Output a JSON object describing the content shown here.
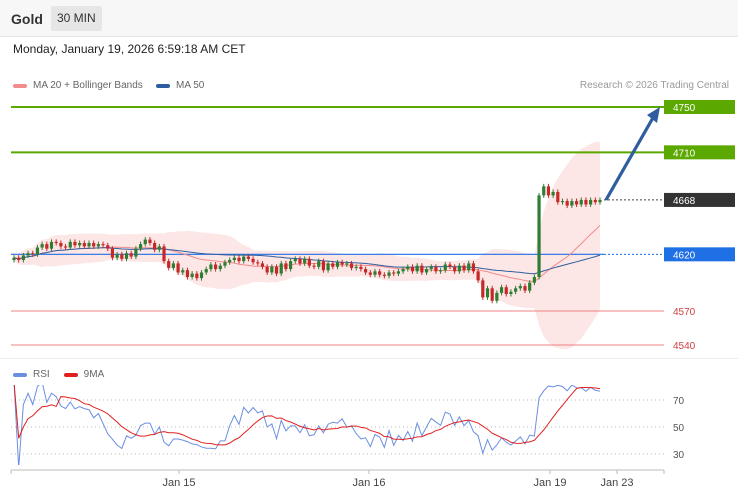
{
  "header": {
    "title": "Gold",
    "timeframe": "30 MIN"
  },
  "date_label": "Monday, January 19, 2026 6:59:18 AM CET",
  "legend": {
    "ma20": {
      "label": "MA 20 + Bollinger Bands",
      "color": "#f28b8b"
    },
    "ma50": {
      "label": "MA 50",
      "color": "#2f5e9e"
    }
  },
  "copyright": "Research © 2026 Trading Central",
  "levels": [
    {
      "value": 4750,
      "label": "4750",
      "color": "#5aa800",
      "kind": "resistance"
    },
    {
      "value": 4710,
      "label": "4710",
      "color": "#5aa800",
      "kind": "resistance"
    },
    {
      "value": 4668,
      "label": "4668",
      "color": "#333333",
      "kind": "last"
    },
    {
      "value": 4620,
      "label": "4620",
      "color": "#1f6fe5",
      "kind": "pivot"
    },
    {
      "value": 4570,
      "label": "4570",
      "color": "#f08080",
      "kind": "support"
    },
    {
      "value": 4540,
      "label": "4540",
      "color": "#f08080",
      "kind": "support"
    }
  ],
  "rsi_legend": {
    "rsi": {
      "label": "RSI",
      "color": "#6b8fe0"
    },
    "ma9": {
      "label": "9MA",
      "color": "#e02020"
    }
  },
  "rsi_axis": [
    "70",
    "50",
    "30"
  ],
  "x_labels": [
    "Jan 15",
    "Jan 16",
    "Jan 19",
    "Jan 23"
  ],
  "chart_data": {
    "type": "candlestick",
    "instrument": "Gold",
    "timeframe": "30 MIN",
    "up_color": "#2e7d32",
    "down_color": "#c62828",
    "closes": [
      4617,
      4615,
      4619,
      4621,
      4620,
      4626,
      4629,
      4625,
      4631,
      4630,
      4627,
      4626,
      4631,
      4628,
      4630,
      4627,
      4630,
      4627,
      4629,
      4628,
      4625,
      4617,
      4620,
      4616,
      4621,
      4618,
      4625,
      4629,
      4633,
      4630,
      4624,
      4627,
      4614,
      4608,
      4612,
      4604,
      4606,
      4600,
      4603,
      4599,
      4604,
      4607,
      4611,
      4607,
      4610,
      4613,
      4615,
      4617,
      4614,
      4618,
      4616,
      4613,
      4612,
      4609,
      4604,
      4609,
      4603,
      4612,
      4607,
      4614,
      4616,
      4612,
      4616,
      4610,
      4609,
      4614,
      4606,
      4612,
      4609,
      4613,
      4611,
      4612,
      4608,
      4609,
      4607,
      4604,
      4602,
      4605,
      4602,
      4601,
      4604,
      4603,
      4605,
      4607,
      4609,
      4605,
      4610,
      4604,
      4607,
      4609,
      4605,
      4606,
      4611,
      4609,
      4605,
      4610,
      4606,
      4612,
      4605,
      4597,
      4582,
      4590,
      4579,
      4586,
      4591,
      4585,
      4587,
      4590,
      4592,
      4588,
      4595,
      4600,
      4672,
      4680,
      4672,
      4675,
      4666,
      4667,
      4663,
      4667,
      4664,
      4668,
      4664,
      4668,
      4666,
      4668
    ],
    "y_scale_note": "price axis levels: 4750, 4710, 4668, 4620, 4570, 4540",
    "projection": {
      "from": 4668,
      "to": 4750
    },
    "rsi_axis_ticks": [
      70,
      50,
      30
    ],
    "x_tick_labels": [
      "Jan 15",
      "Jan 16",
      "Jan 19",
      "Jan 23"
    ]
  }
}
